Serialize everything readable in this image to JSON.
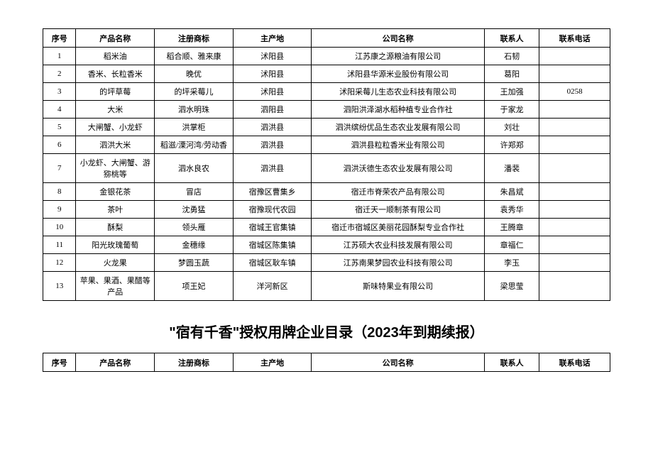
{
  "table1": {
    "columns": [
      "序号",
      "产品名称",
      "注册商标",
      "主产地",
      "公司名称",
      "联系人",
      "联系电话"
    ],
    "rows": [
      [
        "1",
        "稻米油",
        "稻合顺、雅来康",
        "沭阳县",
        "江苏康之源粮油有限公司",
        "石韧",
        ""
      ],
      [
        "2",
        "香米、长粒香米",
        "晚优",
        "沭阳县",
        "沭阳县华源米业股份有限公司",
        "葛阳",
        ""
      ],
      [
        "3",
        "的坪草莓",
        "的坪采莓儿",
        "沭阳县",
        "沭阳采莓儿生态农业科技有限公司",
        "王加强",
        "0258"
      ],
      [
        "4",
        "大米",
        "泗水明珠",
        "泗阳县",
        "泗阳洪泽湖水稻种植专业合作社",
        "于家龙",
        ""
      ],
      [
        "5",
        "大闸蟹、小龙虾",
        "洪掌柜",
        "泗洪县",
        "泗洪缤纷优品生态农业发展有限公司",
        "刘壮",
        ""
      ],
      [
        "6",
        "泗洪大米",
        "稻滋/溧河湾/劳动香",
        "泗洪县",
        "泗洪县粒粒香米业有限公司",
        "许郑郑",
        ""
      ],
      [
        "7",
        "小龙虾、大闸蟹、游猕桃等",
        "泗水良农",
        "泗洪县",
        "泗洪沃德生态农业发展有限公司",
        "潘裴",
        ""
      ],
      [
        "8",
        "金银花茶",
        "冒店",
        "宿豫区曹集乡",
        "宿迁市脊荣农产品有限公司",
        "朱昌斌",
        ""
      ],
      [
        "9",
        "茶叶",
        "沈勇猛",
        "宿豫现代农园",
        "宿迁天一顺制茶有限公司",
        "袁秀华",
        ""
      ],
      [
        "10",
        "酥梨",
        "领头雁",
        "宿城王官集镇",
        "宿迁市宿城区美丽花园酥梨专业合作社",
        "王腾章",
        ""
      ],
      [
        "11",
        "阳光玫瑰葡萄",
        "金穗缘",
        "宿城区陈集镇",
        "江苏硕大农业科技发展有限公司",
        "章福仁",
        ""
      ],
      [
        "12",
        "火龙果",
        "梦圆玉蔬",
        "宿城区耿车镇",
        "江苏南果梦园农业科技有限公司",
        "李玉",
        ""
      ],
      [
        "13",
        "苹果、果酒、果醋等产品",
        "项王妃",
        "洋河新区",
        "斯味特果业有限公司",
        "梁思莹",
        ""
      ]
    ]
  },
  "section_title": "\"宿有千香\"授权用牌企业目录（2023年到期续报）",
  "table2": {
    "columns": [
      "序号",
      "产品名称",
      "注册商标",
      "主产地",
      "公司名称",
      "联系人",
      "联系电话"
    ]
  },
  "layout": {
    "col_classes": [
      "col-seq",
      "col-product",
      "col-trademark",
      "col-origin",
      "col-company",
      "col-contact",
      "col-phone"
    ]
  }
}
